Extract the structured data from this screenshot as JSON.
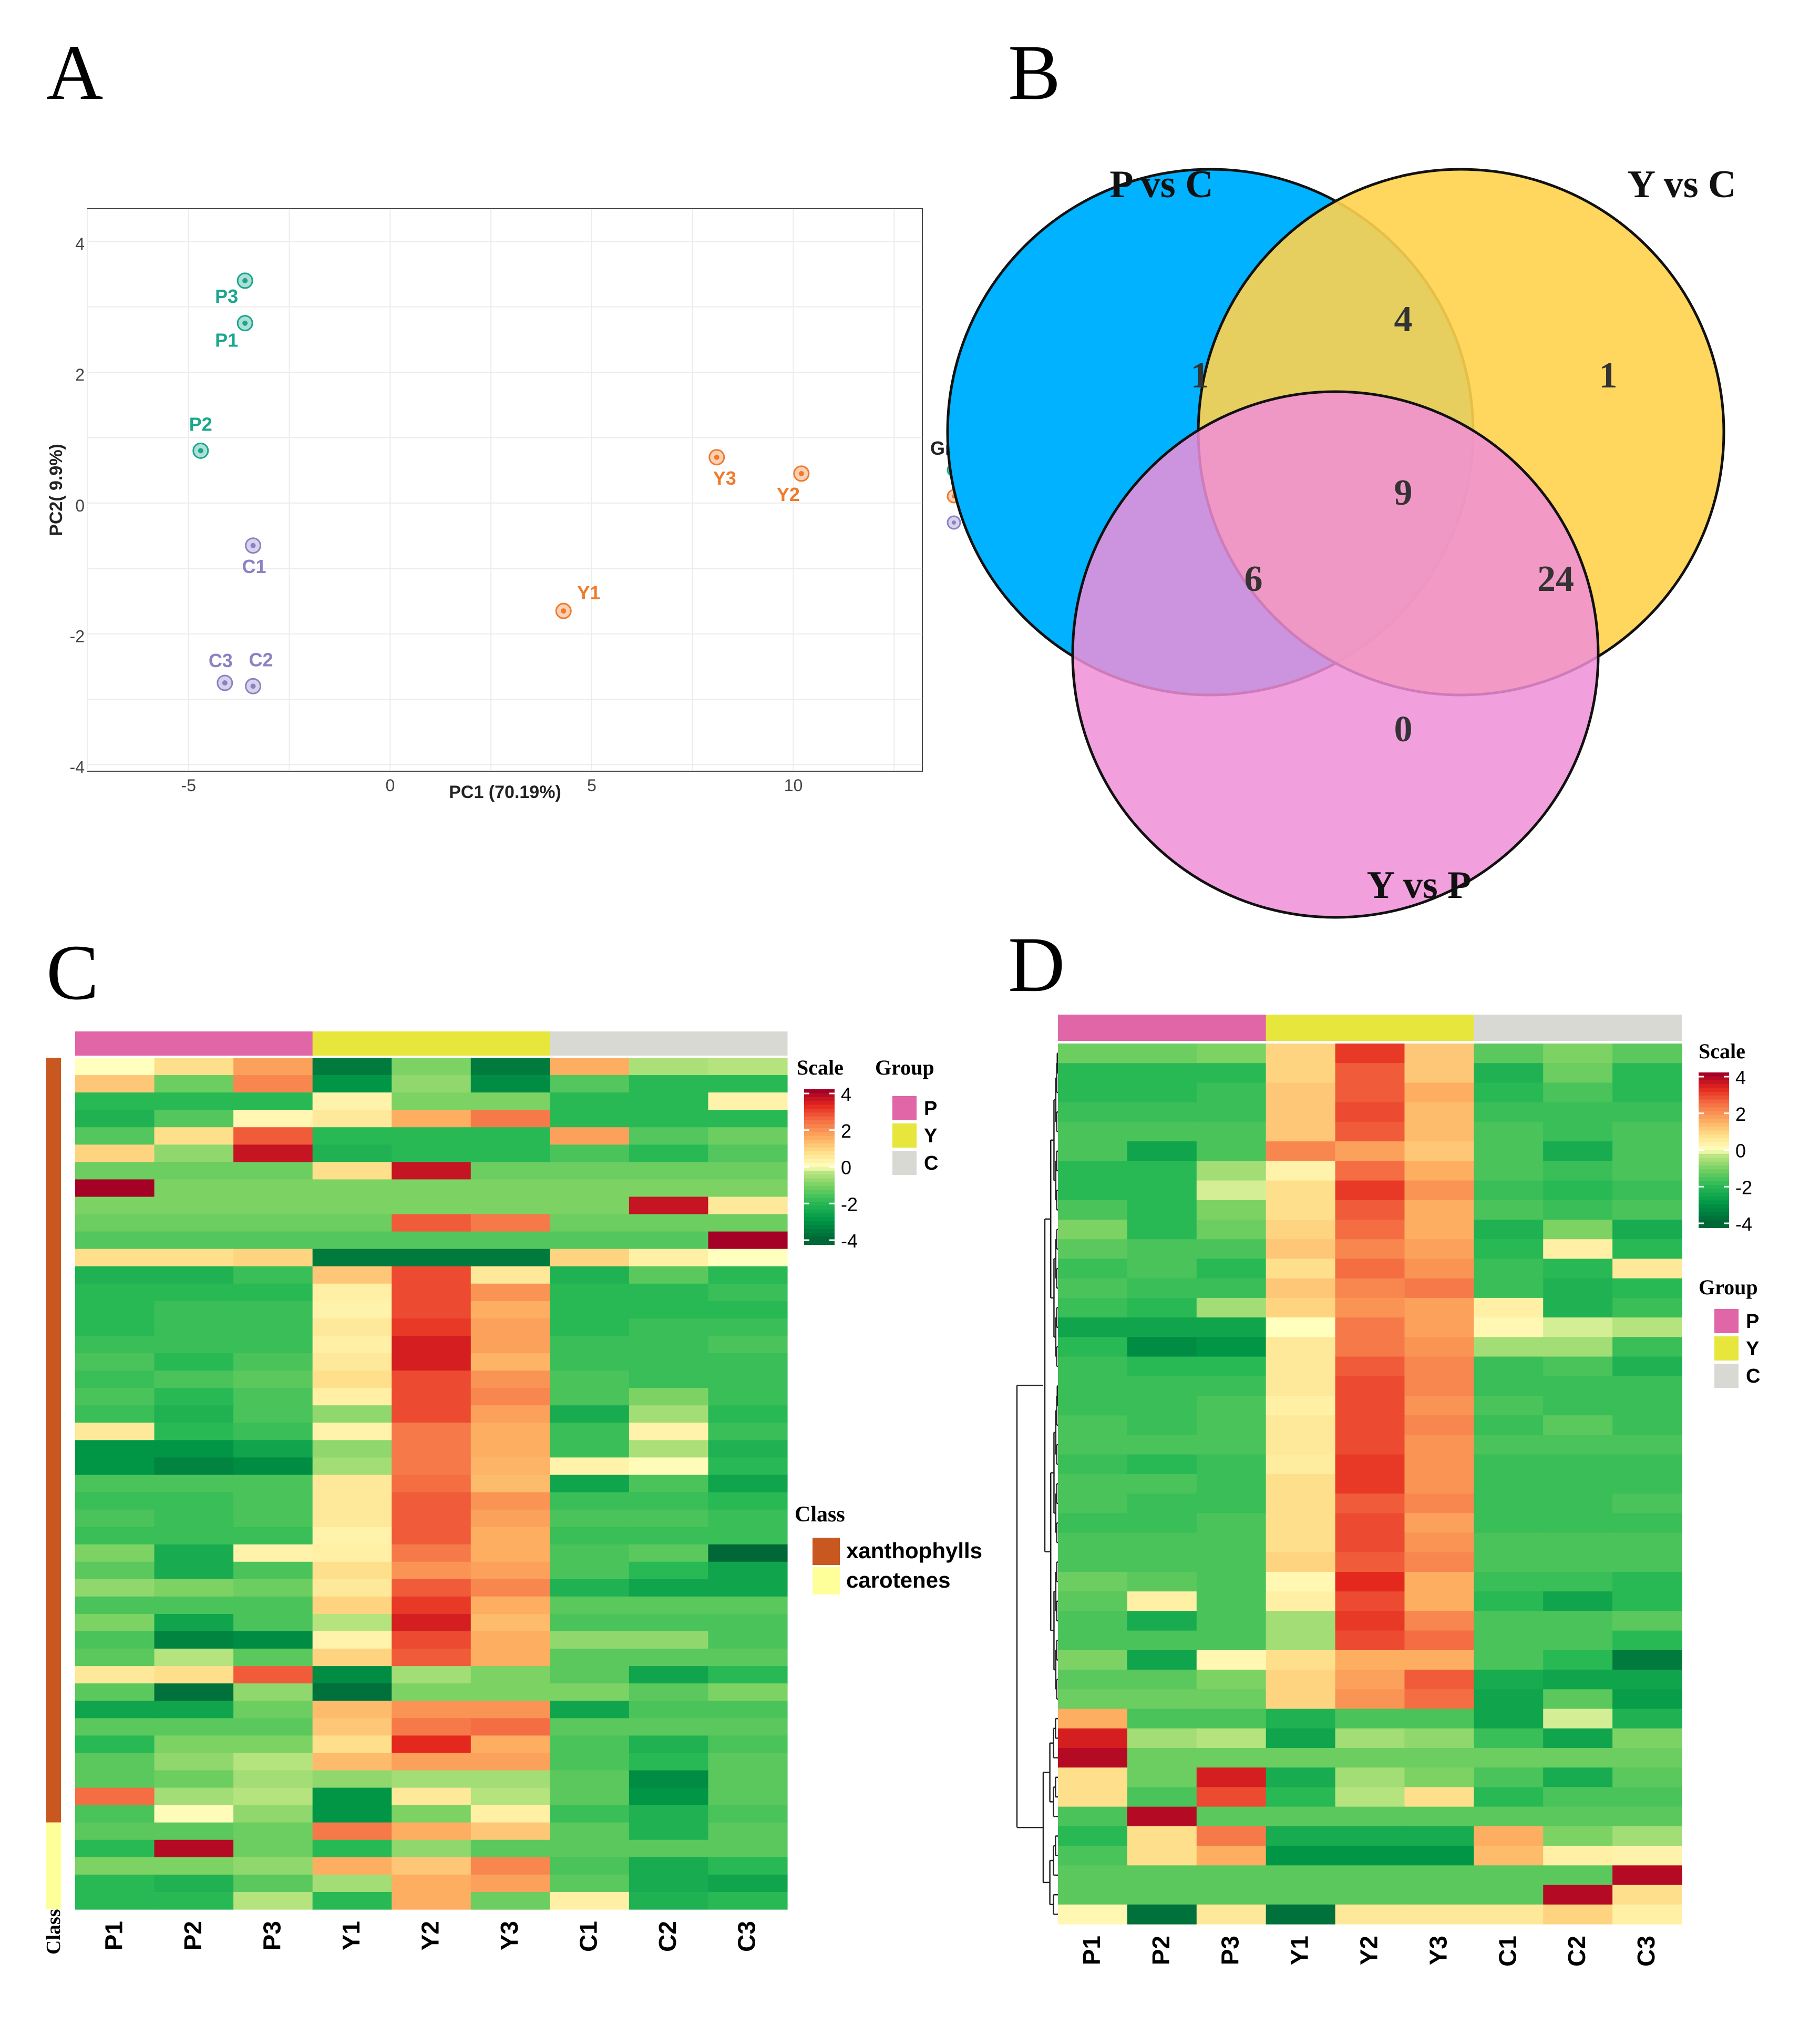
{
  "panels": {
    "a": "A",
    "b": "B",
    "c": "C",
    "d": "D"
  },
  "chart_data": [
    {
      "panel": "A",
      "type": "scatter",
      "xlabel": "PC1 (70.19%)",
      "ylabel": "PC2( 9.9%)",
      "xlim": [
        -7.5,
        13.2
      ],
      "ylim": [
        -4.1,
        4.5
      ],
      "xticks": [
        -5,
        0,
        5,
        10
      ],
      "yticks": [
        -4,
        -2,
        0,
        2,
        4
      ],
      "legend_title": "Group",
      "legend_position": "right",
      "groups": [
        {
          "name": "P",
          "color": "#1aa78c",
          "points": [
            {
              "label": "P3",
              "x": -3.6,
              "y": 3.4
            },
            {
              "label": "P1",
              "x": -3.6,
              "y": 2.75
            },
            {
              "label": "P2",
              "x": -4.7,
              "y": 0.8
            }
          ]
        },
        {
          "name": "Y",
          "color": "#f07a2b",
          "points": [
            {
              "label": "Y3",
              "x": 8.1,
              "y": 0.7
            },
            {
              "label": "Y2",
              "x": 10.2,
              "y": 0.45
            },
            {
              "label": "Y1",
              "x": 4.3,
              "y": -1.65
            }
          ]
        },
        {
          "name": "C",
          "color": "#8b82c4",
          "points": [
            {
              "label": "C1",
              "x": -3.4,
              "y": -0.65
            },
            {
              "label": "C3",
              "x": -4.1,
              "y": -2.75
            },
            {
              "label": "C2",
              "x": -3.4,
              "y": -2.8
            }
          ]
        }
      ]
    },
    {
      "panel": "B",
      "type": "venn",
      "sets": [
        {
          "name": "P vs C",
          "color": "#00b2ff"
        },
        {
          "name": "Y vs C",
          "color": "#ffd24d"
        },
        {
          "name": "Y vs P",
          "color": "#f08ed8"
        }
      ],
      "regions": {
        "P_only": 1,
        "Y_only": 1,
        "YP_only": 0,
        "PC_YC": 4,
        "PC_YP": 6,
        "YC_YP": 24,
        "all": 9
      }
    },
    {
      "panel": "C",
      "type": "heatmap",
      "columns": [
        "P1",
        "P2",
        "P3",
        "Y1",
        "Y2",
        "Y3",
        "C1",
        "C2",
        "C3"
      ],
      "column_groups": [
        "P",
        "P",
        "P",
        "Y",
        "Y",
        "Y",
        "C",
        "C",
        "C"
      ],
      "class_label": "Class",
      "classes": [
        {
          "name": "xanthophylls",
          "color": "#c8581f",
          "rows": 44
        },
        {
          "name": "carotenes",
          "color": "#ffff99",
          "rows": 5
        }
      ],
      "scale_title": "Scale",
      "scale_ticks": [
        "4",
        "2",
        "0",
        "-2",
        "-4"
      ],
      "group_title": "Group",
      "groups": [
        {
          "name": "P",
          "color": "#e066a8"
        },
        {
          "name": "Y",
          "color": "#e6e63c"
        },
        {
          "name": "C",
          "color": "#d9d9d4"
        }
      ],
      "values": [
        [
          0.0,
          0.8,
          1.8,
          -3.6,
          -1.0,
          -3.6,
          1.6,
          -0.5,
          -0.4
        ],
        [
          1.2,
          -1.2,
          2.2,
          -3.0,
          -0.8,
          -3.2,
          -1.5,
          -2.0,
          -2.0
        ],
        [
          -2.0,
          -2.0,
          -2.0,
          0.3,
          -1.0,
          -1.0,
          -2.0,
          -2.0,
          0.3
        ],
        [
          -2.2,
          -1.5,
          0.2,
          0.6,
          1.6,
          2.4,
          -2.0,
          -2.0,
          -2.0
        ],
        [
          -1.5,
          0.8,
          2.8,
          -2.0,
          -2.0,
          -2.0,
          1.8,
          -1.5,
          -1.2
        ],
        [
          1.0,
          -0.8,
          3.8,
          -2.2,
          -2.0,
          -2.0,
          -1.6,
          -2.0,
          -1.5
        ],
        [
          -1.2,
          -1.2,
          -1.2,
          0.8,
          3.8,
          -1.2,
          -1.2,
          -1.2,
          -1.2
        ],
        [
          4.2,
          -1.0,
          -1.0,
          -1.0,
          -1.0,
          -1.0,
          -1.0,
          -1.0,
          -1.0
        ],
        [
          -1.0,
          -1.0,
          -1.0,
          -1.0,
          -1.0,
          -1.0,
          -1.0,
          3.8,
          0.6
        ],
        [
          -1.2,
          -1.2,
          -1.2,
          -1.2,
          2.8,
          2.4,
          -1.2,
          -1.2,
          -1.2
        ],
        [
          -1.5,
          -1.5,
          -1.5,
          -1.5,
          -1.5,
          -1.5,
          -1.5,
          -1.5,
          4.2
        ],
        [
          0.8,
          0.8,
          1.0,
          -3.6,
          -3.6,
          -3.6,
          1.0,
          0.4,
          0.0
        ],
        [
          -2.2,
          -2.2,
          -1.8,
          1.2,
          3.0,
          0.6,
          -2.2,
          -1.4,
          -2.0
        ],
        [
          -2.0,
          -2.0,
          -2.0,
          0.4,
          3.0,
          2.0,
          -2.0,
          -2.0,
          -1.8
        ],
        [
          -2.0,
          -1.8,
          -1.8,
          0.3,
          3.0,
          1.6,
          -2.0,
          -2.0,
          -2.0
        ],
        [
          -2.0,
          -1.8,
          -1.8,
          0.6,
          3.2,
          1.8,
          -2.0,
          -1.8,
          -1.8
        ],
        [
          -1.8,
          -1.8,
          -1.8,
          0.4,
          3.6,
          1.8,
          -1.8,
          -1.8,
          -1.6
        ],
        [
          -1.6,
          -2.0,
          -1.6,
          0.6,
          3.6,
          1.5,
          -1.8,
          -1.8,
          -1.8
        ],
        [
          -1.8,
          -1.6,
          -1.4,
          0.8,
          3.0,
          2.0,
          -1.6,
          -1.8,
          -1.8
        ],
        [
          -1.6,
          -2.0,
          -1.6,
          0.4,
          3.0,
          2.2,
          -1.6,
          -1.0,
          -1.8
        ],
        [
          -1.8,
          -2.2,
          -1.6,
          -0.8,
          3.0,
          1.8,
          -2.4,
          -0.6,
          -2.0
        ],
        [
          0.6,
          -2.0,
          -1.8,
          0.3,
          2.4,
          1.6,
          -1.8,
          0.3,
          -1.8
        ],
        [
          -3.0,
          -3.0,
          -2.6,
          -0.8,
          2.4,
          1.6,
          -1.8,
          -0.5,
          -2.2
        ],
        [
          -3.0,
          -3.4,
          -3.2,
          -0.6,
          2.4,
          1.5,
          0.3,
          0.1,
          -2.0
        ],
        [
          -1.6,
          -1.6,
          -1.6,
          0.6,
          2.6,
          1.4,
          -2.6,
          -1.6,
          -2.6
        ],
        [
          -1.8,
          -1.8,
          -1.6,
          0.6,
          2.8,
          2.0,
          -1.8,
          -1.8,
          -2.0
        ],
        [
          -1.6,
          -1.8,
          -1.6,
          0.6,
          2.8,
          1.8,
          -1.6,
          -1.6,
          -1.8
        ],
        [
          -1.8,
          -1.8,
          -1.8,
          0.3,
          2.8,
          1.6,
          -1.8,
          -1.8,
          -1.8
        ],
        [
          -1.0,
          -2.4,
          0.3,
          0.4,
          2.4,
          1.6,
          -1.6,
          -1.4,
          -4.0
        ],
        [
          -1.4,
          -2.4,
          -1.6,
          0.8,
          2.0,
          1.8,
          -1.6,
          -2.0,
          -2.6
        ],
        [
          -0.8,
          -1.0,
          -1.2,
          0.6,
          2.8,
          2.2,
          -2.2,
          -2.6,
          -2.6
        ],
        [
          -1.6,
          -1.6,
          -1.6,
          1.0,
          3.2,
          1.6,
          -1.4,
          -1.4,
          -1.4
        ],
        [
          -1.0,
          -2.6,
          -1.6,
          -0.4,
          3.6,
          1.4,
          -1.6,
          -1.6,
          -1.6
        ],
        [
          -1.6,
          -3.4,
          -3.2,
          0.3,
          3.0,
          1.6,
          -0.8,
          -0.8,
          -1.6
        ],
        [
          -1.4,
          -0.4,
          -1.4,
          1.0,
          2.8,
          1.6,
          -1.4,
          -1.4,
          -1.4
        ],
        [
          0.6,
          0.8,
          2.8,
          -3.2,
          -0.6,
          -1.0,
          -1.4,
          -2.6,
          -2.0
        ],
        [
          -1.4,
          -3.8,
          -0.8,
          -3.8,
          -1.0,
          -1.0,
          -1.0,
          -1.4,
          -1.0
        ],
        [
          -2.6,
          -2.6,
          -1.2,
          1.4,
          2.0,
          2.0,
          -2.6,
          -1.6,
          -1.6
        ],
        [
          -1.4,
          -1.4,
          -1.4,
          1.2,
          2.4,
          2.6,
          -1.4,
          -1.4,
          -1.4
        ],
        [
          -2.0,
          -1.0,
          -1.0,
          0.8,
          3.4,
          1.6,
          -1.6,
          -2.2,
          -1.6
        ],
        [
          -1.4,
          -0.8,
          -0.4,
          1.4,
          1.8,
          1.8,
          -1.6,
          -2.0,
          -1.4
        ],
        [
          -1.4,
          -1.2,
          -0.6,
          -0.8,
          -0.6,
          -0.6,
          -1.4,
          -3.2,
          -1.4
        ],
        [
          2.6,
          -0.6,
          -0.4,
          -3.0,
          0.6,
          -0.4,
          -1.4,
          -3.0,
          -1.4
        ],
        [
          -1.6,
          0.1,
          -0.8,
          -3.0,
          -1.0,
          0.4,
          -1.8,
          -2.2,
          -1.6
        ],
        [
          -1.4,
          -1.4,
          -1.2,
          2.4,
          1.6,
          1.2,
          -1.4,
          -2.2,
          -1.4
        ],
        [
          -2.0,
          4.0,
          -1.2,
          -2.0,
          -0.8,
          -1.4,
          -1.4,
          -1.4,
          -1.4
        ],
        [
          -1.0,
          -1.0,
          -0.8,
          1.6,
          1.2,
          2.2,
          -1.6,
          -2.4,
          -2.0
        ],
        [
          -2.0,
          -2.2,
          -1.4,
          -0.6,
          1.6,
          1.8,
          -1.4,
          -2.4,
          -2.6
        ],
        [
          -2.0,
          -2.0,
          -0.4,
          -2.0,
          1.6,
          -1.2,
          0.4,
          -2.2,
          -2.0
        ]
      ]
    },
    {
      "panel": "D",
      "type": "heatmap",
      "columns": [
        "P1",
        "P2",
        "P3",
        "Y1",
        "Y2",
        "Y3",
        "C1",
        "C2",
        "C3"
      ],
      "column_groups": [
        "P",
        "P",
        "P",
        "Y",
        "Y",
        "Y",
        "C",
        "C",
        "C"
      ],
      "scale_title": "Scale",
      "scale_ticks": [
        "4",
        "2",
        "0",
        "-2",
        "-4"
      ],
      "group_title": "Group",
      "groups": [
        {
          "name": "P",
          "color": "#e066a8"
        },
        {
          "name": "Y",
          "color": "#e6e63c"
        },
        {
          "name": "C",
          "color": "#d9d9d4"
        }
      ],
      "values": [
        [
          -1.2,
          -1.2,
          -1.0,
          1.0,
          3.2,
          1.2,
          -1.4,
          -1.0,
          -1.4
        ],
        [
          -2.0,
          -2.0,
          -2.0,
          1.0,
          2.8,
          1.2,
          -2.2,
          -1.2,
          -2.0
        ],
        [
          -2.0,
          -2.0,
          -1.8,
          1.2,
          2.8,
          1.6,
          -2.0,
          -1.6,
          -2.0
        ],
        [
          -1.8,
          -1.8,
          -1.8,
          1.2,
          3.0,
          1.4,
          -1.8,
          -1.8,
          -1.8
        ],
        [
          -1.6,
          -1.6,
          -1.6,
          1.2,
          2.8,
          1.4,
          -1.6,
          -1.8,
          -1.6
        ],
        [
          -1.6,
          -2.6,
          -1.6,
          2.2,
          1.8,
          1.2,
          -1.6,
          -2.4,
          -1.6
        ],
        [
          -2.0,
          -2.0,
          -0.6,
          0.3,
          2.6,
          1.6,
          -1.6,
          -1.8,
          -1.6
        ],
        [
          -2.0,
          -2.0,
          -0.2,
          0.8,
          3.2,
          2.0,
          -1.8,
          -2.0,
          -1.8
        ],
        [
          -1.6,
          -2.0,
          -1.0,
          0.8,
          2.8,
          1.6,
          -1.6,
          -1.8,
          -1.6
        ],
        [
          -1.0,
          -2.0,
          -1.2,
          1.0,
          2.6,
          1.6,
          -2.2,
          -1.0,
          -2.4
        ],
        [
          -1.4,
          -1.6,
          -1.6,
          1.2,
          2.2,
          1.8,
          -2.0,
          0.4,
          -2.0
        ],
        [
          -1.8,
          -1.6,
          -2.0,
          0.8,
          2.6,
          2.0,
          -1.8,
          -2.0,
          0.6
        ],
        [
          -1.6,
          -1.8,
          -1.8,
          1.2,
          2.2,
          2.4,
          -1.8,
          -2.2,
          -2.0
        ],
        [
          -1.8,
          -2.0,
          -0.6,
          1.0,
          2.0,
          1.8,
          0.4,
          -2.2,
          -1.8
        ],
        [
          -2.6,
          -2.6,
          -2.6,
          0.0,
          2.4,
          1.8,
          0.2,
          -0.2,
          -0.4
        ],
        [
          -2.0,
          -3.2,
          -3.0,
          0.6,
          2.4,
          2.0,
          -0.6,
          -0.6,
          -1.8
        ],
        [
          -1.8,
          -2.0,
          -2.0,
          0.6,
          2.8,
          2.2,
          -1.8,
          -1.6,
          -2.2
        ],
        [
          -1.8,
          -1.8,
          -1.8,
          0.6,
          3.0,
          2.2,
          -1.8,
          -1.8,
          -1.8
        ],
        [
          -1.8,
          -1.8,
          -1.6,
          0.4,
          3.0,
          2.0,
          -1.6,
          -1.8,
          -1.8
        ],
        [
          -1.6,
          -1.8,
          -1.6,
          0.6,
          3.0,
          2.2,
          -1.8,
          -1.4,
          -1.8
        ],
        [
          -1.6,
          -1.6,
          -1.6,
          0.6,
          3.0,
          2.0,
          -1.6,
          -1.6,
          -1.6
        ],
        [
          -1.8,
          -2.0,
          -1.8,
          0.5,
          3.2,
          2.0,
          -1.8,
          -1.8,
          -1.8
        ],
        [
          -1.6,
          -1.6,
          -1.8,
          0.8,
          3.2,
          2.0,
          -1.8,
          -1.8,
          -1.8
        ],
        [
          -1.6,
          -1.8,
          -1.8,
          0.8,
          2.8,
          2.2,
          -1.8,
          -1.8,
          -1.6
        ],
        [
          -1.8,
          -1.8,
          -1.6,
          0.8,
          3.0,
          1.8,
          -1.8,
          -1.8,
          -1.8
        ],
        [
          -1.6,
          -1.6,
          -1.6,
          0.8,
          3.0,
          2.0,
          -1.6,
          -1.6,
          -1.6
        ],
        [
          -1.6,
          -1.6,
          -1.6,
          1.0,
          2.8,
          2.2,
          -1.6,
          -1.6,
          -1.6
        ],
        [
          -1.2,
          -1.4,
          -1.6,
          0.2,
          3.4,
          1.6,
          -1.8,
          -1.8,
          -2.0
        ],
        [
          -1.4,
          0.4,
          -1.6,
          0.4,
          3.0,
          1.6,
          -2.0,
          -2.6,
          -2.0
        ],
        [
          -1.6,
          -2.4,
          -1.6,
          -0.6,
          3.2,
          2.2,
          -1.6,
          -1.6,
          -1.4
        ],
        [
          -1.6,
          -1.6,
          -1.6,
          -0.6,
          3.0,
          2.6,
          -1.6,
          -1.6,
          -2.0
        ],
        [
          -1.0,
          -2.6,
          0.2,
          0.8,
          1.6,
          1.6,
          -1.6,
          -2.0,
          -3.6
        ],
        [
          -1.4,
          -1.4,
          -1.0,
          1.0,
          1.8,
          2.8,
          -2.4,
          -2.6,
          -2.6
        ],
        [
          -1.2,
          -1.2,
          -1.2,
          1.0,
          2.0,
          2.6,
          -2.6,
          -1.4,
          -2.8
        ],
        [
          1.6,
          -1.6,
          -1.6,
          -2.2,
          -1.6,
          -1.6,
          -2.6,
          -0.2,
          -2.2
        ],
        [
          3.6,
          -0.6,
          -0.4,
          -2.6,
          -0.6,
          -0.8,
          -1.8,
          -2.6,
          -1.0
        ],
        [
          4.0,
          -1.2,
          -1.2,
          -1.2,
          -1.2,
          -1.2,
          -1.2,
          -1.2,
          -1.2
        ],
        [
          0.8,
          -1.2,
          3.6,
          -2.4,
          -0.6,
          -1.0,
          -1.6,
          -2.4,
          -1.4
        ],
        [
          0.8,
          -1.6,
          3.0,
          -2.0,
          -0.4,
          0.8,
          -2.0,
          -1.6,
          -1.6
        ],
        [
          -1.6,
          4.0,
          -1.4,
          -1.4,
          -1.4,
          -1.4,
          -1.4,
          -1.4,
          -1.4
        ],
        [
          -2.0,
          0.8,
          2.4,
          -2.4,
          -2.4,
          -2.4,
          1.6,
          -1.0,
          -0.6
        ],
        [
          -1.6,
          0.8,
          1.6,
          -3.0,
          -3.0,
          -3.0,
          1.4,
          0.4,
          0.3
        ],
        [
          -1.4,
          -1.4,
          -1.4,
          -1.4,
          -1.4,
          -1.4,
          -1.4,
          -1.4,
          4.0
        ],
        [
          -1.4,
          -1.4,
          -1.4,
          -1.4,
          -1.4,
          -1.4,
          -1.4,
          4.0,
          0.8
        ],
        [
          0.2,
          -3.8,
          0.6,
          -3.8,
          0.6,
          0.6,
          0.6,
          1.0,
          0.4
        ]
      ]
    }
  ]
}
